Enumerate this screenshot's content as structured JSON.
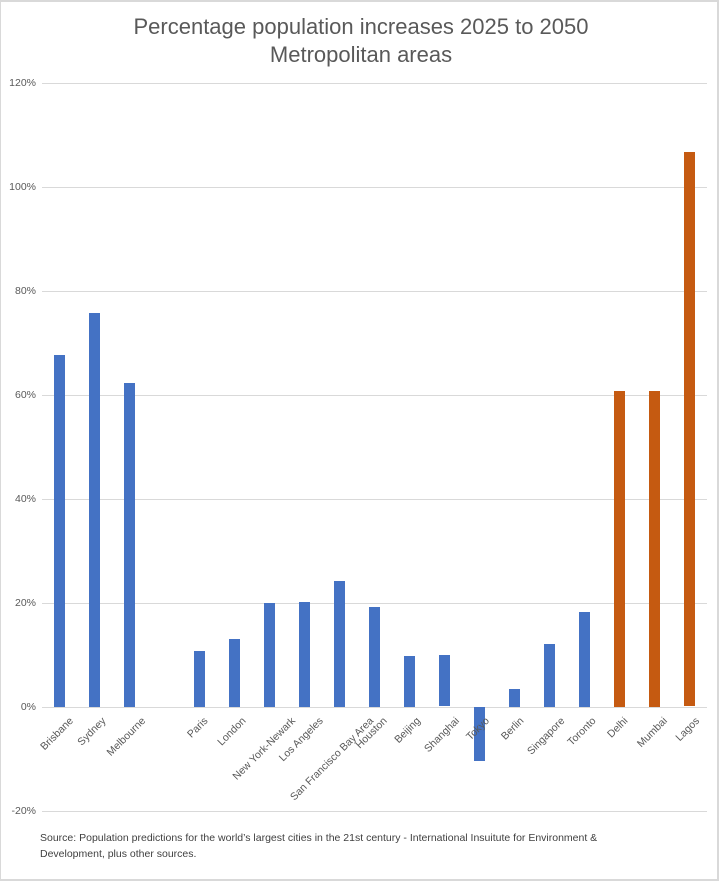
{
  "chart": {
    "title_line1": "Percentage population increases 2025 to 2050",
    "title_line2": "Metropolitan areas",
    "source": "Source: Population predictions for the world’s largest cities in the 21st century -  International Insuitute for Environment & Development, plus other sources.",
    "y_ticks": [
      "120%",
      "100%",
      "80%",
      "60%",
      "40%",
      "20%",
      "0%",
      "-20%"
    ],
    "colors": {
      "primary": "#4472C4",
      "highlight": "#C55A11",
      "grid": "#D9D9D9",
      "text": "#595959"
    }
  },
  "chart_data": {
    "type": "bar",
    "title": "Percentage population increases 2025 to 2050 — Metropolitan areas",
    "xlabel": "",
    "ylabel": "",
    "ylim": [
      -0.2,
      1.2
    ],
    "y_tick_values": [
      -0.2,
      0,
      0.2,
      0.4,
      0.6,
      0.8,
      1.0,
      1.2
    ],
    "grid": true,
    "legend": "none",
    "categories": [
      "Brisbane",
      "Sydney",
      "Melbourne",
      "",
      "Paris",
      "London",
      "New York-Newark",
      "Los Angeles",
      "San Francisco Bay Area",
      "Houston",
      "Beijing",
      "Shanghai",
      "Tokyo",
      "Berlin",
      "Singapore",
      "Toronto",
      "Delhi",
      "Mumbai",
      "Lagos"
    ],
    "values": [
      0.677,
      0.758,
      0.623,
      null,
      0.107,
      0.13,
      0.2,
      0.201,
      0.242,
      0.192,
      0.098,
      0.099,
      -0.104,
      0.034,
      0.121,
      0.183,
      0.607,
      0.607,
      1.066
    ],
    "bar_colors": [
      "#4472C4",
      "#4472C4",
      "#4472C4",
      null,
      "#4472C4",
      "#4472C4",
      "#4472C4",
      "#4472C4",
      "#4472C4",
      "#4472C4",
      "#4472C4",
      "#4472C4",
      "#4472C4",
      "#4472C4",
      "#4472C4",
      "#4472C4",
      "#C55A11",
      "#C55A11",
      "#C55A11"
    ],
    "source_note": "Source: Population predictions for the world’s largest cities in the 21st century -  International Insuitute for Environment & Development, plus other sources."
  }
}
